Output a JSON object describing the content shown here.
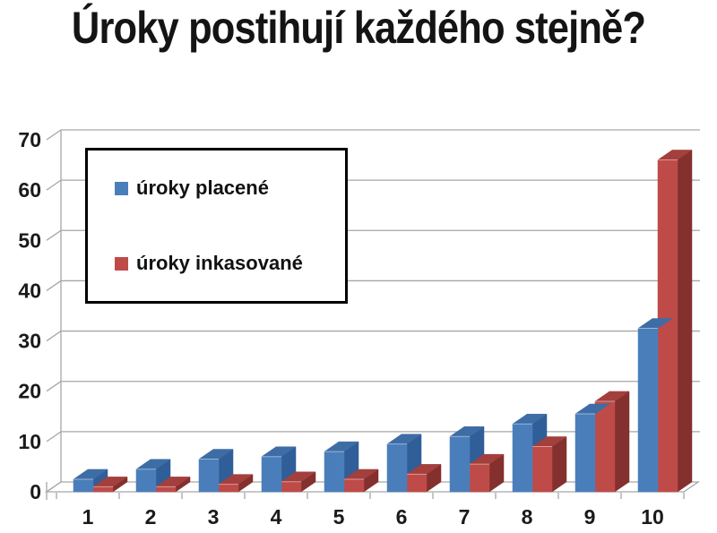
{
  "title": "Úroky postihují každého stejně?",
  "chart_data": {
    "type": "bar",
    "variant": "3d-clustered-column",
    "title": "Úroky postihují každého stejně?",
    "categories": [
      "1",
      "2",
      "3",
      "4",
      "5",
      "6",
      "7",
      "8",
      "9",
      "10"
    ],
    "series": [
      {
        "name": "úroky placené",
        "color": "#4A7EBB",
        "color_top": "#3E6DA5",
        "color_side": "#305E99",
        "values": [
          2.5,
          4.5,
          6.5,
          7,
          8,
          9.5,
          11,
          13.5,
          15.5,
          32.5
        ]
      },
      {
        "name": "úroky inkasované",
        "color": "#BE4B48",
        "color_top": "#A33F3D",
        "color_side": "#83302E",
        "values": [
          1,
          1,
          1.5,
          2,
          2.5,
          3.5,
          5.5,
          9,
          18,
          66
        ]
      }
    ],
    "xlabel": "",
    "ylabel": "",
    "ylim": [
      0,
      70
    ],
    "ytick_step": 10,
    "grid": true,
    "legend_position": "upper-left-box",
    "gridline_color": "#A6A6A6",
    "text_color": "#1a1a1a",
    "background": "#ffffff"
  }
}
